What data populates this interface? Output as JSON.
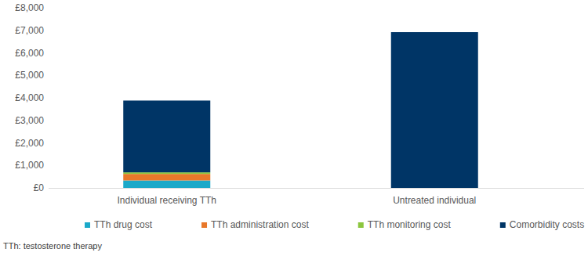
{
  "chart_data": {
    "type": "bar",
    "stacked": true,
    "grid": false,
    "legend": "bottom",
    "categories": [
      "Individual receiving TTh",
      "Untreated individual"
    ],
    "series": [
      {
        "name": "TTh drug cost",
        "color": "#1ba9c9",
        "values": [
          330,
          0
        ]
      },
      {
        "name": "TTh administration cost",
        "color": "#e8782a",
        "values": [
          290,
          0
        ]
      },
      {
        "name": "TTh monitoring cost",
        "color": "#8cc63f",
        "values": [
          70,
          0
        ]
      },
      {
        "name": "Comorbidity costs",
        "color": "#003566",
        "values": [
          3190,
          6920
        ]
      }
    ],
    "ylim": [
      0,
      8000
    ],
    "yticks": [
      {
        "value": 0,
        "label": "£0"
      },
      {
        "value": 1000,
        "label": "£1,000"
      },
      {
        "value": 2000,
        "label": "£2,000"
      },
      {
        "value": 3000,
        "label": "£3,000"
      },
      {
        "value": 4000,
        "label": "£4,000"
      },
      {
        "value": 5000,
        "label": "£5,000"
      },
      {
        "value": 6000,
        "label": "£6,000"
      },
      {
        "value": 7000,
        "label": "£7,000"
      },
      {
        "value": 8000,
        "label": "£8,000"
      }
    ],
    "footnote": "TTh: testosterone therapy"
  }
}
